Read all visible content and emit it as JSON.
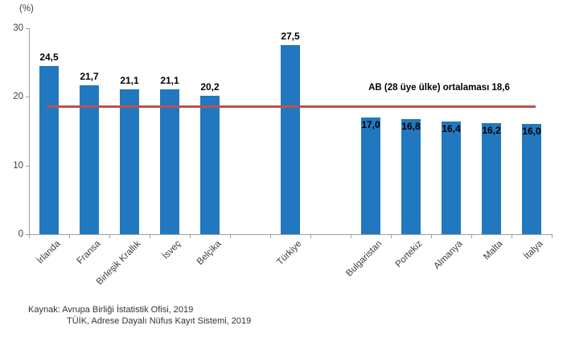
{
  "chart_data": {
    "type": "bar",
    "title": "",
    "unit_label": "(%)",
    "bar_color": "#2178BF",
    "axis_color": "#A0A0A0",
    "ylim": [
      0,
      30
    ],
    "yticks": [
      0,
      10,
      20,
      30
    ],
    "categories": [
      "İrlanda",
      "Fransa",
      "Birleşik Krallık",
      "İsveç",
      "Belçika",
      "",
      "Türkiye",
      "",
      "Bulgaristan",
      "Portekiz",
      "Almanya",
      "Malta",
      "İtalya"
    ],
    "values": [
      24.5,
      21.7,
      21.1,
      21.1,
      20.2,
      null,
      27.5,
      null,
      17.0,
      16.8,
      16.4,
      16.2,
      16.0
    ],
    "value_labels": [
      "24,5",
      "21,7",
      "21,1",
      "21,1",
      "20,2",
      "",
      "27,5",
      "",
      "17,0",
      "16,8",
      "16,4",
      "16,2",
      "16,0"
    ],
    "value_label_positions": [
      "above",
      "above",
      "above",
      "above",
      "above",
      null,
      "above",
      null,
      "inside",
      "inside",
      "inside",
      "inside",
      "inside"
    ],
    "reference_line": {
      "value": 18.6,
      "label": "AB (28 üye ülke) ortalaması 18,6",
      "color": "#C0504D"
    },
    "grid": "off",
    "legend": "none"
  },
  "source": {
    "line1": "Kaynak: Avrupa Birliği İstatistik Ofisi, 2019",
    "line2": "TÜİK, Adrese Dayalı Nüfus Kayıt Sistemi, 2019"
  }
}
